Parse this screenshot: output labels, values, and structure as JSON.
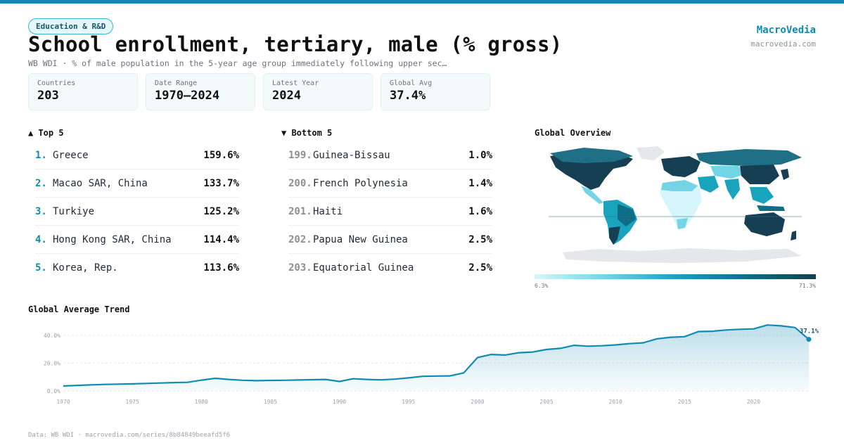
{
  "category_tag": "Education & R&D",
  "title": "School enrollment, tertiary, male (% gross)",
  "subtitle": "WB WDI · % of male population in the 5-year age group immediately following upper sec…",
  "brand": {
    "name": "MacroVedia",
    "url": "macrovedia.com"
  },
  "stats": [
    {
      "label": "Countries",
      "value": "203"
    },
    {
      "label": "Date Range",
      "value": "1970–2024"
    },
    {
      "label": "Latest Year",
      "value": "2024"
    },
    {
      "label": "Global Avg",
      "value": "37.4%"
    }
  ],
  "top5": {
    "heading": "▲ Top 5",
    "items": [
      {
        "rank": "1.",
        "name": "Greece",
        "value": "159.6%"
      },
      {
        "rank": "2.",
        "name": "Macao SAR, China",
        "value": "133.7%"
      },
      {
        "rank": "3.",
        "name": "Turkiye",
        "value": "125.2%"
      },
      {
        "rank": "4.",
        "name": "Hong Kong SAR, China",
        "value": "114.4%"
      },
      {
        "rank": "5.",
        "name": "Korea, Rep.",
        "value": "113.6%"
      }
    ]
  },
  "bottom5": {
    "heading": "▼ Bottom 5",
    "items": [
      {
        "rank": "199.",
        "name": "Guinea-Bissau",
        "value": "1.0%"
      },
      {
        "rank": "200.",
        "name": "French Polynesia",
        "value": "1.4%"
      },
      {
        "rank": "201.",
        "name": "Haiti",
        "value": "1.6%"
      },
      {
        "rank": "202.",
        "name": "Papua New Guinea",
        "value": "2.5%"
      },
      {
        "rank": "203.",
        "name": "Equatorial Guinea",
        "value": "2.5%"
      }
    ]
  },
  "map": {
    "heading": "Global Overview",
    "legend_min": "6.3%",
    "legend_max": "71.3%",
    "colors": {
      "low": "#d7f6fb",
      "mid": "#1aa3bd",
      "high": "#163f53",
      "nodata": "#e5e7eb"
    }
  },
  "trend_heading": "Global Average Trend",
  "footer": "Data: WB WDI · macrovedia.com/series/8b84849beeafd5f6",
  "accent_color": "#118ab2",
  "chart_data": {
    "type": "area",
    "title": "Global Average Trend",
    "x": [
      1970,
      1971,
      1972,
      1973,
      1974,
      1975,
      1976,
      1977,
      1978,
      1979,
      1980,
      1981,
      1982,
      1983,
      1984,
      1985,
      1986,
      1987,
      1988,
      1989,
      1990,
      1991,
      1992,
      1993,
      1994,
      1995,
      1996,
      1997,
      1998,
      1999,
      2000,
      2001,
      2002,
      2003,
      2004,
      2005,
      2006,
      2007,
      2008,
      2009,
      2010,
      2011,
      2012,
      2013,
      2014,
      2015,
      2016,
      2017,
      2018,
      2019,
      2020,
      2021,
      2022,
      2023,
      2024
    ],
    "series": [
      {
        "values": [
          3.6,
          4.0,
          4.4,
          4.7,
          4.9,
          5.1,
          5.4,
          5.7,
          6.0,
          6.2,
          7.8,
          9.1,
          8.3,
          7.7,
          7.4,
          7.6,
          7.7,
          7.9,
          8.1,
          8.3,
          6.8,
          8.8,
          8.3,
          8.0,
          8.5,
          9.4,
          10.5,
          10.7,
          10.8,
          13.0,
          24.0,
          26.2,
          25.8,
          27.5,
          28.0,
          29.8,
          30.6,
          32.8,
          32.2,
          32.5,
          33.1,
          34.0,
          34.6,
          37.5,
          38.6,
          39.0,
          42.7,
          42.9,
          43.8,
          44.3,
          44.6,
          47.4,
          46.8,
          45.6,
          37.1
        ]
      }
    ],
    "end_label": "37.1%",
    "xlim": [
      1970,
      2024
    ],
    "ylim": [
      0,
      48
    ],
    "yticks": [
      0,
      20,
      40
    ],
    "ytick_labels": [
      "0.0%",
      "20.0%",
      "40.0%"
    ],
    "xticks": [
      1970,
      1975,
      1980,
      1985,
      1990,
      1995,
      2000,
      2005,
      2010,
      2015,
      2020
    ],
    "grid": true
  }
}
